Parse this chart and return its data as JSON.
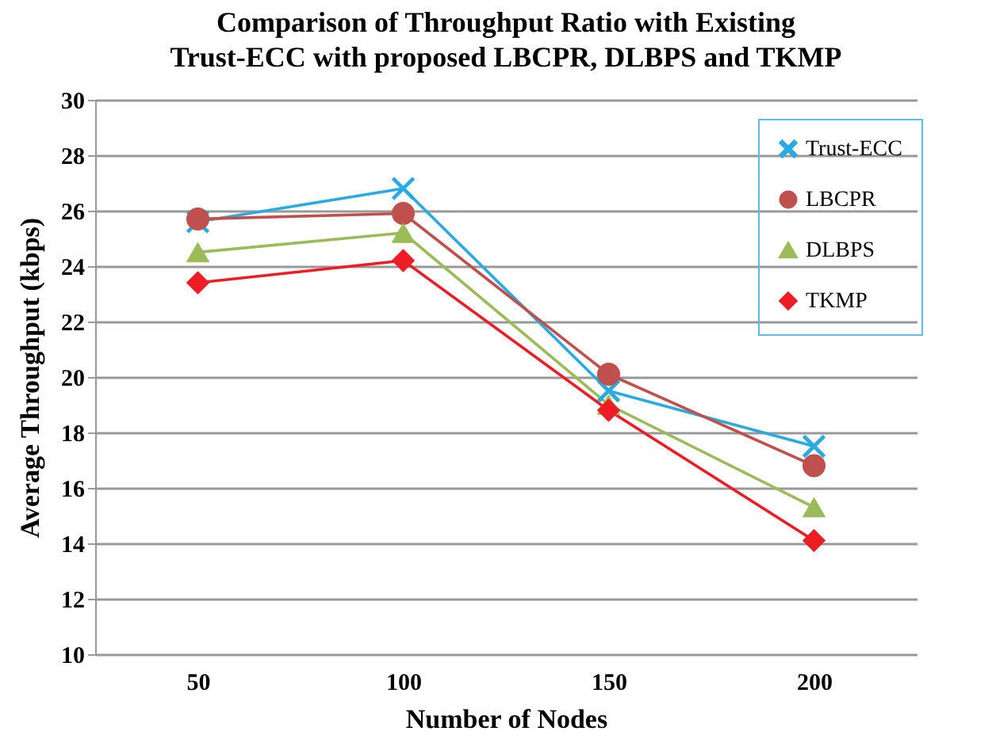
{
  "chart_data": {
    "type": "line",
    "title": [
      "Comparison of Throughput Ratio with Existing",
      "Trust-ECC with proposed LBCPR, DLBPS and TKMP"
    ],
    "xlabel": "Number of Nodes",
    "ylabel": "Average Throughput  (kbps)",
    "categories": [
      "50",
      "100",
      "150",
      "200"
    ],
    "series": [
      {
        "name": "Trust-ECC",
        "color": "#29abe2",
        "marker": "cross",
        "values": [
          25.6,
          26.8,
          19.5,
          17.5
        ]
      },
      {
        "name": "LBCPR",
        "color": "#c0504d",
        "marker": "circle",
        "values": [
          25.7,
          25.9,
          20.1,
          16.8
        ]
      },
      {
        "name": "DLBPS",
        "color": "#9bbb59",
        "marker": "triangle",
        "values": [
          24.5,
          25.2,
          19.0,
          15.3
        ]
      },
      {
        "name": "TKMP",
        "color": "#ee1c25",
        "marker": "diamond",
        "values": [
          23.4,
          24.2,
          18.8,
          14.1
        ]
      }
    ],
    "ylim": [
      10,
      30
    ],
    "yticks": [
      10,
      12,
      14,
      16,
      18,
      20,
      22,
      24,
      26,
      28,
      30
    ],
    "grid": "y",
    "legend": "top right",
    "line_style": "solid"
  }
}
